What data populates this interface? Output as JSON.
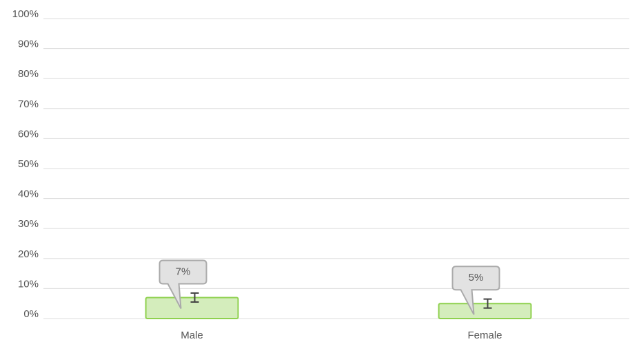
{
  "chart_data": {
    "type": "bar",
    "categories": [
      "Male",
      "Female"
    ],
    "values": [
      7,
      5
    ],
    "value_labels": [
      "7%",
      "5%"
    ],
    "errors": [
      1.5,
      1.5
    ],
    "color": "#d4edbc",
    "ylim": [
      0,
      100
    ],
    "yticks": [
      {
        "value": 0,
        "label": "0%"
      },
      {
        "value": 10,
        "label": "10%"
      },
      {
        "value": 20,
        "label": "20%"
      },
      {
        "value": 30,
        "label": "30%"
      },
      {
        "value": 40,
        "label": "40%"
      },
      {
        "value": 50,
        "label": "50%"
      },
      {
        "value": 60,
        "label": "60%"
      },
      {
        "value": 70,
        "label": "70%"
      },
      {
        "value": 80,
        "label": "80%"
      },
      {
        "value": 90,
        "label": "90%"
      },
      {
        "value": 100,
        "label": "100%"
      }
    ],
    "grid": true
  }
}
